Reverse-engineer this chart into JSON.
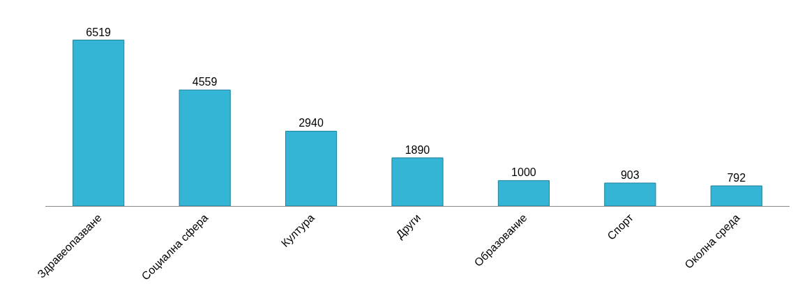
{
  "chart_data": {
    "type": "bar",
    "categories": [
      "Здравеопазване",
      "Социална сфера",
      "Култура",
      "Други",
      "Образование",
      "Спорт",
      "Околна среда"
    ],
    "values": [
      6519,
      4559,
      2940,
      1890,
      1000,
      903,
      792
    ],
    "color": "#35b5d6",
    "data_labels": true
  }
}
